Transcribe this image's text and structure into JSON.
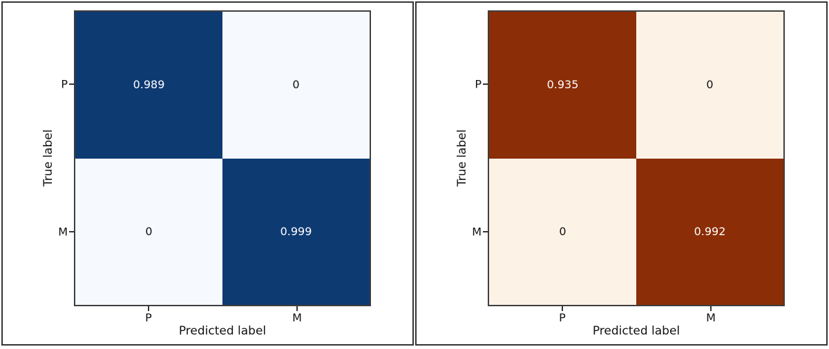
{
  "colors": {
    "panel_border": "#333333",
    "axes_spine": "#3d3d3d",
    "blues_high": "#0e3a72",
    "blues_low": "#f6f9fe",
    "oranges_high": "#8b2d06",
    "oranges_low": "#fdf2e6",
    "text_on_dark": "#ffffff",
    "text_on_light": "#111111"
  },
  "panels": [
    {
      "name": "confusion-matrix-blues",
      "colormap": "Blues",
      "xlabel": "Predicted label",
      "ylabel": "True label",
      "x_ticks": [
        "P",
        "M"
      ],
      "y_ticks": [
        "P",
        "M"
      ],
      "cells": [
        {
          "row": "P",
          "col": "P",
          "value": "0.989",
          "bg": "#0e3a72",
          "text_color": "#ffffff"
        },
        {
          "row": "P",
          "col": "M",
          "value": "0",
          "bg": "#f6f9fe",
          "text_color": "#111111"
        },
        {
          "row": "M",
          "col": "P",
          "value": "0",
          "bg": "#f6f9fe",
          "text_color": "#111111"
        },
        {
          "row": "M",
          "col": "M",
          "value": "0.999",
          "bg": "#0e3a72",
          "text_color": "#ffffff"
        }
      ]
    },
    {
      "name": "confusion-matrix-oranges",
      "colormap": "Oranges",
      "xlabel": "Predicted label",
      "ylabel": "True label",
      "x_ticks": [
        "P",
        "M"
      ],
      "y_ticks": [
        "P",
        "M"
      ],
      "cells": [
        {
          "row": "P",
          "col": "P",
          "value": "0.935",
          "bg": "#8b2d06",
          "text_color": "#ffffff"
        },
        {
          "row": "P",
          "col": "M",
          "value": "0",
          "bg": "#fdf2e6",
          "text_color": "#111111"
        },
        {
          "row": "M",
          "col": "P",
          "value": "0",
          "bg": "#fdf2e6",
          "text_color": "#111111"
        },
        {
          "row": "M",
          "col": "M",
          "value": "0.992",
          "bg": "#8b2d06",
          "text_color": "#ffffff"
        }
      ]
    }
  ],
  "chart_data": [
    {
      "type": "heatmap",
      "title": "",
      "xlabel": "Predicted label",
      "ylabel": "True label",
      "x_categories": [
        "P",
        "M"
      ],
      "y_categories": [
        "P",
        "M"
      ],
      "values": [
        [
          0.989,
          0
        ],
        [
          0,
          0.999
        ]
      ],
      "annotations": [
        [
          "0.989",
          "0"
        ],
        [
          "0",
          "0.999"
        ]
      ],
      "colormap": "Blues",
      "legend": "none",
      "grid": false
    },
    {
      "type": "heatmap",
      "title": "",
      "xlabel": "Predicted label",
      "ylabel": "True label",
      "x_categories": [
        "P",
        "M"
      ],
      "y_categories": [
        "P",
        "M"
      ],
      "values": [
        [
          0.935,
          0
        ],
        [
          0,
          0.992
        ]
      ],
      "annotations": [
        [
          "0.935",
          "0"
        ],
        [
          "0",
          "0.992"
        ]
      ],
      "colormap": "Oranges",
      "legend": "none",
      "grid": false
    }
  ]
}
